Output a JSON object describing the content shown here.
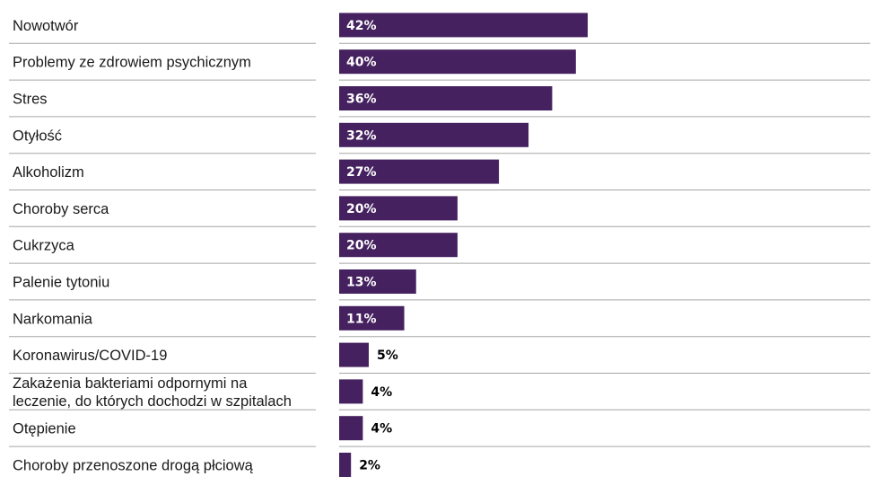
{
  "chart_data": {
    "type": "bar",
    "orientation": "horizontal",
    "categories": [
      [
        "Nowotwór"
      ],
      [
        "Problemy ze zdrowiem psychicznym"
      ],
      [
        "Stres"
      ],
      [
        "Otyłość"
      ],
      [
        "Alkoholizm"
      ],
      [
        "Choroby serca"
      ],
      [
        "Cukrzyca"
      ],
      [
        "Palenie tytoniu"
      ],
      [
        "Narkomania"
      ],
      [
        "Koronawirus/COVID-19"
      ],
      [
        "Zakażenia bakteriami odpornymi na",
        "leczenie, do których dochodzi w szpitalach"
      ],
      [
        "Otępienie"
      ],
      [
        "Choroby przenoszone drogą płciową"
      ]
    ],
    "values": [
      42,
      40,
      36,
      32,
      27,
      20,
      20,
      13,
      11,
      5,
      4,
      4,
      2
    ],
    "value_labels": [
      "42%",
      "40%",
      "36%",
      "32%",
      "27%",
      "20%",
      "20%",
      "13%",
      "11%",
      "5%",
      "4%",
      "4%",
      "2%"
    ],
    "unit": "%",
    "xlim": [
      0,
      100
    ],
    "grid": false,
    "colors": {
      "bar": "#45225f",
      "label_inside": "#ffffff",
      "label_outside": "#000000",
      "separator": "#a6a6a6"
    }
  }
}
